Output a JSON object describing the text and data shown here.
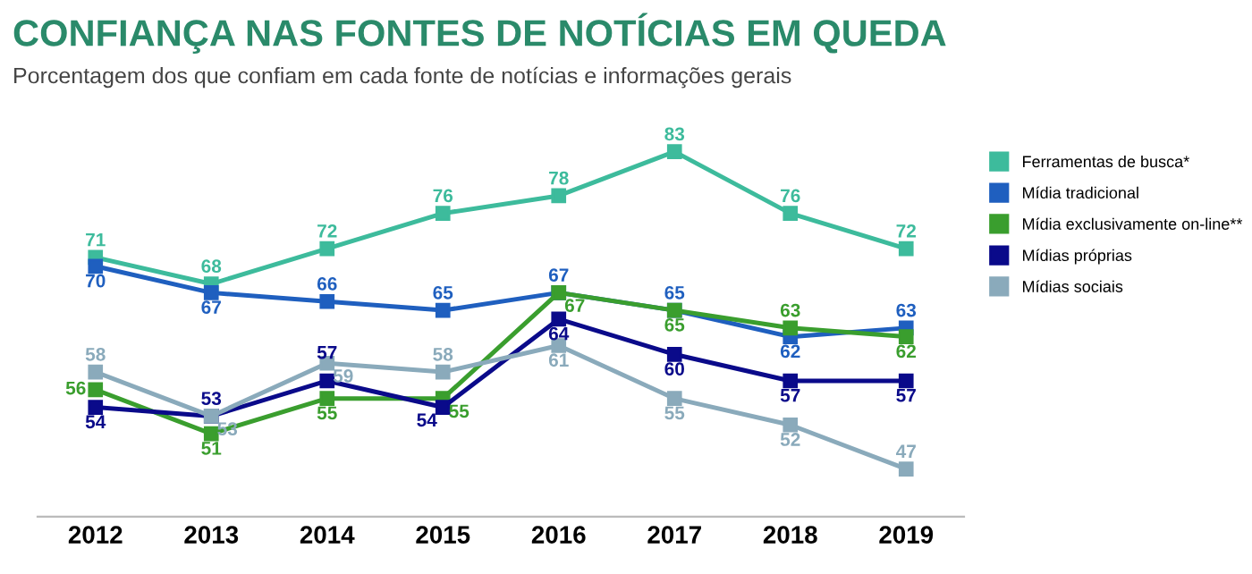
{
  "chart_data": {
    "type": "line",
    "title": "CONFIANÇA NAS FONTES DE NOTÍCIAS EM QUEDA",
    "subtitle": "Porcentagem dos que confiam em cada fonte de notícias e informações gerais",
    "categories": [
      "2012",
      "2013",
      "2014",
      "2015",
      "2016",
      "2017",
      "2018",
      "2019"
    ],
    "series": [
      {
        "name": "Ferramentas de busca*",
        "color": "#3dbb9c",
        "values": [
          71,
          68,
          72,
          76,
          78,
          83,
          76,
          72
        ]
      },
      {
        "name": "Mídia tradicional",
        "color": "#1f5fbf",
        "values": [
          70,
          67,
          66,
          65,
          67,
          65,
          62,
          63
        ]
      },
      {
        "name": "Mídia exclusivamente on-line**",
        "color": "#3a9e2e",
        "values": [
          56,
          51,
          55,
          55,
          67,
          65,
          63,
          62
        ]
      },
      {
        "name": "Mídias próprias",
        "color": "#0a0a8a",
        "values": [
          54,
          53,
          57,
          54,
          64,
          60,
          57,
          57
        ]
      },
      {
        "name": "Mídias sociais",
        "color": "#8aaabb",
        "values": [
          58,
          53,
          59,
          58,
          61,
          55,
          52,
          47
        ]
      }
    ],
    "tick_labels": "x",
    "data_labels": true,
    "marker": "square",
    "line_style": "solid",
    "legend": "right",
    "grid": false
  }
}
